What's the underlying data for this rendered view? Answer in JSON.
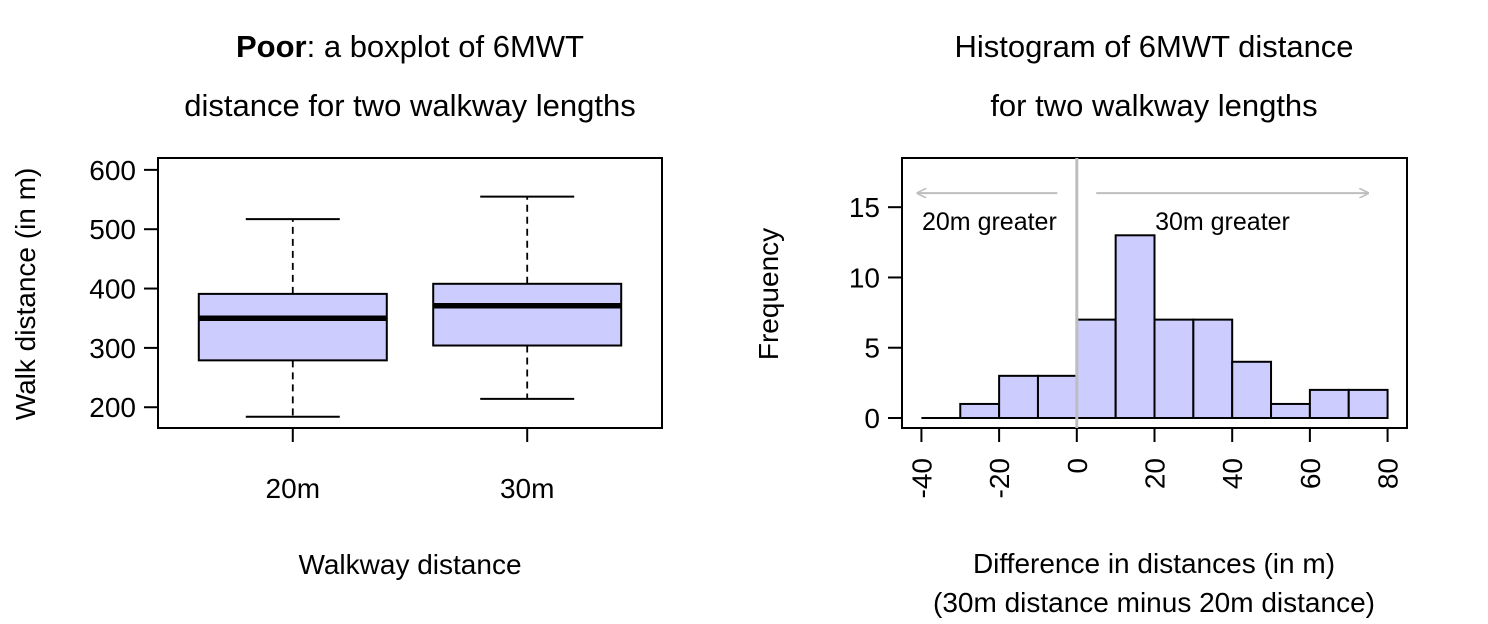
{
  "chart_data": [
    {
      "type": "boxplot",
      "title_bold": "Poor",
      "title_rest": ": a boxplot of 6MWT",
      "title_line2": "distance for two walkway lengths",
      "xlabel": "Walkway distance",
      "ylabel": "Walk distance (in m)",
      "ylim": [
        165,
        620
      ],
      "yticks": [
        200,
        300,
        400,
        500,
        600
      ],
      "fill_color": "#ccccff",
      "groups": [
        {
          "name": "20m",
          "min": 184,
          "q1": 279,
          "median": 350,
          "q3": 391,
          "max": 517
        },
        {
          "name": "30m",
          "min": 214,
          "q1": 304,
          "median": 371,
          "q3": 408,
          "max": 555
        }
      ]
    },
    {
      "type": "histogram",
      "title_line1": "Histogram of 6MWT distance",
      "title_line2": "for two walkway lengths",
      "xlabel_line1": "Difference in distances (in m)",
      "xlabel_line2": "(30m distance minus 20m distance)",
      "ylabel": "Frequency",
      "xlim": [
        -45,
        85
      ],
      "ylim": [
        0,
        18.5
      ],
      "xticks": [
        -40,
        -20,
        0,
        20,
        40,
        60,
        80
      ],
      "yticks": [
        0,
        5,
        10,
        15
      ],
      "fill_color": "#ccccff",
      "zero_line_color": "#bebebe",
      "bins": [
        {
          "start": -40,
          "end": -30,
          "count": 0
        },
        {
          "start": -30,
          "end": -20,
          "count": 1
        },
        {
          "start": -20,
          "end": -10,
          "count": 3
        },
        {
          "start": -10,
          "end": 0,
          "count": 3
        },
        {
          "start": 0,
          "end": 10,
          "count": 7
        },
        {
          "start": 10,
          "end": 20,
          "count": 13
        },
        {
          "start": 20,
          "end": 30,
          "count": 7
        },
        {
          "start": 30,
          "end": 40,
          "count": 7
        },
        {
          "start": 40,
          "end": 50,
          "count": 4
        },
        {
          "start": 50,
          "end": 60,
          "count": 1
        },
        {
          "start": 60,
          "end": 70,
          "count": 2
        },
        {
          "start": 70,
          "end": 80,
          "count": 2
        }
      ],
      "annotations": {
        "left_label": "20m greater",
        "right_label": "30m greater",
        "arrow_left_from": -5,
        "arrow_left_to": -41,
        "arrow_right_from": 5,
        "arrow_right_to": 75,
        "arrow_level": 16
      }
    }
  ]
}
